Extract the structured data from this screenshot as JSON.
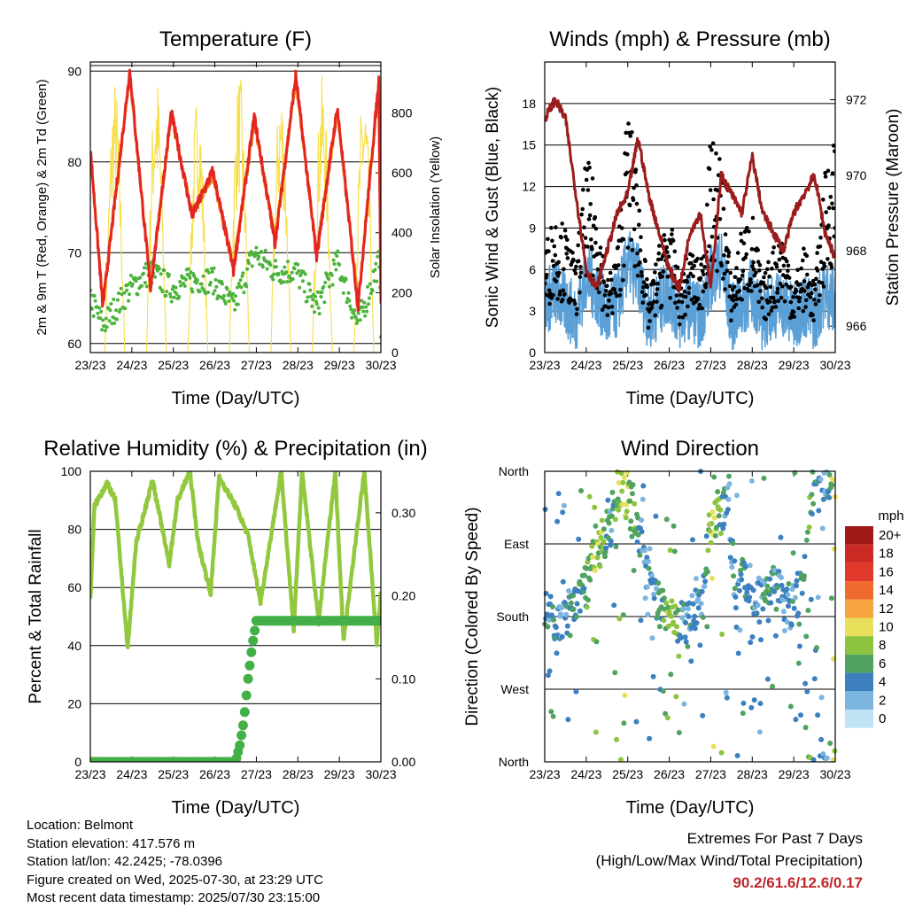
{
  "colors": {
    "t2m": "#e3261f",
    "t9m": "#f28c28",
    "td": "#4db33d",
    "solar": "#f7df4b",
    "wind": "#5a9fd6",
    "gust": "#000000",
    "pressure": "#9b1c1c",
    "rh": "#92c83e",
    "rain": "#43b047",
    "extremes": "#c0272d"
  },
  "info": {
    "location": "Location: Belmont",
    "elevation": "Station elevation: 417.576 m",
    "latlon": "Station lat/lon: 42.2425; -78.0396",
    "created": "Figure created on Wed, 2025-07-30, at 23:29 UTC",
    "latest": "Most recent data timestamp: 2025/07/30 23:15:00"
  },
  "extremes": {
    "heading": "Extremes For Past 7 Days",
    "subheading": "(High/Low/Max Wind/Total Precipitation)",
    "values": "90.2/61.6/12.6/0.17"
  },
  "chart_data": [
    {
      "type": "line",
      "title": "Temperature (F)",
      "xlabel": "Time (Day/UTC)",
      "ylabel": "2m & 9m T (Red, Orange) & 2m Td (Green)",
      "y2label": "Solar Insolation (Yellow)",
      "x_ticks": [
        "23/23",
        "24/23",
        "25/23",
        "26/23",
        "27/23",
        "28/23",
        "29/23",
        "30/23"
      ],
      "ylim": [
        59,
        91
      ],
      "y_ticks": [
        60,
        70,
        80,
        90
      ],
      "y2lim": [
        0,
        970
      ],
      "y2_ticks": [
        0,
        200,
        400,
        600,
        800
      ],
      "grid": true,
      "series": [
        {
          "name": "2m T",
          "axis": "left",
          "values": [
            81.5,
            64,
            90,
            66,
            85.5,
            74,
            79,
            68,
            85,
            71,
            89.5,
            69.5,
            86,
            64,
            89,
            64.5,
            88,
            80.5
          ]
        },
        {
          "name": "9m T",
          "axis": "left",
          "values": [
            81,
            64.5,
            89.5,
            66.5,
            85,
            74.5,
            78.5,
            68.5,
            84.5,
            71.5,
            89,
            70,
            85.5,
            64.5,
            88.5,
            65,
            87.5,
            80
          ]
        },
        {
          "name": "2m Td",
          "axis": "left",
          "values": [
            65,
            62,
            66,
            68,
            66,
            67,
            67,
            64,
            70,
            68,
            68,
            64,
            69,
            62,
            69,
            62,
            66,
            64
          ]
        },
        {
          "name": "Solar Insolation",
          "axis": "right",
          "values": [
            0,
            0,
            920,
            0,
            950,
            0,
            880,
            0,
            940,
            0,
            910,
            0,
            930,
            0,
            900,
            0,
            920,
            0
          ]
        }
      ],
      "x_days": [
        0,
        0.3,
        0.95,
        1.45,
        1.95,
        2.45,
        2.95,
        3.45,
        3.95,
        4.45,
        4.95,
        5.45,
        5.95,
        6.45,
        6.95,
        7,
        0.5,
        1
      ]
    },
    {
      "type": "line",
      "title": "Winds (mph) & Pressure (mb)",
      "xlabel": "Time (Day/UTC)",
      "ylabel": "Sonic Wind & Gust (Blue, Black)",
      "y2label": "Station Pressure (Maroon)",
      "x_ticks": [
        "23/23",
        "24/23",
        "25/23",
        "26/23",
        "27/23",
        "28/23",
        "29/23",
        "30/23"
      ],
      "ylim": [
        0,
        21
      ],
      "y_ticks": [
        0,
        3,
        6,
        9,
        12,
        15,
        18
      ],
      "y2lim": [
        965.3,
        973.0
      ],
      "y2_ticks": [
        966,
        968,
        970,
        972
      ],
      "grid": true,
      "x_days": [
        0,
        0.25,
        0.5,
        0.75,
        1,
        1.25,
        1.5,
        1.75,
        2,
        2.25,
        2.5,
        2.75,
        3,
        3.25,
        3.5,
        3.75,
        4,
        4.25,
        4.5,
        4.75,
        5,
        5.25,
        5.5,
        5.75,
        6,
        6.25,
        6.5,
        6.75,
        7
      ],
      "series": [
        {
          "name": "Sonic Wind",
          "axis": "left",
          "values": [
            3,
            4,
            3,
            2,
            5,
            4,
            2,
            3,
            6,
            5,
            2,
            3,
            4,
            2,
            3,
            2,
            5,
            6,
            2,
            3,
            4,
            2,
            3,
            3,
            2,
            3,
            2,
            4,
            3
          ]
        },
        {
          "name": "Gust",
          "axis": "left",
          "values": [
            6,
            8,
            7,
            5,
            11,
            9,
            4,
            6,
            14,
            10,
            3,
            6,
            8,
            4,
            6,
            5,
            12,
            11,
            4,
            7,
            8,
            4,
            6,
            7,
            4,
            6,
            4,
            10,
            13
          ]
        },
        {
          "name": "Station Pressure",
          "axis": "right",
          "values": [
            971.5,
            972,
            971.5,
            969.5,
            967.5,
            967,
            968,
            969,
            969.5,
            971,
            969.5,
            968.5,
            967.5,
            967,
            968.5,
            969,
            967,
            970,
            969.5,
            969,
            970.5,
            969,
            968.5,
            968,
            969,
            969.5,
            970,
            968.5,
            967.8
          ]
        }
      ]
    },
    {
      "type": "line",
      "title": "Relative Humidity (%) & Precipitation (in)",
      "xlabel": "Time (Day/UTC)",
      "ylabel": "Percent & Total Rainfall",
      "x_ticks": [
        "23/23",
        "24/23",
        "25/23",
        "26/23",
        "27/23",
        "28/23",
        "29/23",
        "30/23"
      ],
      "ylim": [
        0,
        100
      ],
      "y_ticks": [
        0,
        20,
        40,
        60,
        80,
        100
      ],
      "y2lim": [
        0,
        0.35
      ],
      "y2_ticks": [
        "0.00",
        "0.10",
        "0.20",
        "0.30"
      ],
      "grid": true,
      "x_days": [
        0,
        0.1,
        0.4,
        0.6,
        0.9,
        1.1,
        1.5,
        1.9,
        2.1,
        2.4,
        2.6,
        2.9,
        3.1,
        3.5,
        3.8,
        4.1,
        4.6,
        4.9,
        5.1,
        5.5,
        5.9,
        6.1,
        6.6,
        6.9,
        7
      ],
      "series": [
        {
          "name": "Relative Humidity",
          "axis": "left",
          "values": [
            56,
            88,
            96,
            90,
            39,
            75,
            97,
            68,
            90,
            100,
            75,
            58,
            98,
            88,
            78,
            55,
            100,
            45,
            100,
            48,
            100,
            42,
            100,
            41,
            58
          ]
        },
        {
          "name": "Total Precipitation",
          "axis": "right",
          "x_days": [
            0,
            3.5,
            3.6,
            3.7,
            3.8,
            3.9,
            4.0,
            7.0
          ],
          "values": [
            0,
            0,
            0.02,
            0.05,
            0.1,
            0.14,
            0.17,
            0.17
          ]
        }
      ]
    },
    {
      "type": "scatter",
      "title": "Wind Direction",
      "xlabel": "Time (Day/UTC)",
      "ylabel": "Direction (Colored By Speed)",
      "x_ticks": [
        "23/23",
        "24/23",
        "25/23",
        "26/23",
        "27/23",
        "28/23",
        "29/23",
        "30/23"
      ],
      "y_ticks": [
        "North",
        "West",
        "South",
        "East",
        "North"
      ],
      "ylim": [
        0,
        360
      ],
      "legend": {
        "title": "mph",
        "labels": [
          "20+",
          "18",
          "16",
          "14",
          "12",
          "10",
          "8",
          "6",
          "4",
          "2",
          "0"
        ],
        "colors": [
          "#a11a1a",
          "#cc2a25",
          "#e0392b",
          "#f06a2e",
          "#f7a43f",
          "#e8e05a",
          "#8cc43f",
          "#4fa35f",
          "#3c80c0",
          "#7bb5e0",
          "#bfe3f5"
        ]
      },
      "x_days": [
        0.2,
        0.4,
        0.6,
        0.8,
        1.0,
        1.2,
        1.4,
        1.6,
        1.8,
        2.0,
        2.2,
        2.4,
        2.6,
        2.8,
        3.0,
        3.2,
        3.4,
        3.6,
        3.8,
        4.0,
        4.2,
        4.4,
        4.6,
        4.8,
        5.0,
        5.2,
        5.4,
        5.6,
        5.8,
        6.0,
        6.2,
        6.4,
        6.6,
        6.8,
        7.0
      ],
      "values": [
        180,
        170,
        175,
        200,
        215,
        250,
        275,
        300,
        340,
        330,
        300,
        260,
        200,
        190,
        175,
        175,
        165,
        180,
        200,
        300,
        310,
        320,
        215,
        225,
        210,
        200,
        205,
        220,
        190,
        200,
        210,
        330,
        340,
        355,
        350
      ],
      "speeds": [
        4,
        3,
        4,
        5,
        6,
        8,
        7,
        4,
        8,
        9,
        5,
        4,
        3,
        5,
        8,
        6,
        3,
        4,
        3,
        9,
        7,
        3,
        4,
        5,
        4,
        3,
        5,
        4,
        3,
        4,
        5,
        6,
        4,
        3,
        10
      ]
    }
  ]
}
